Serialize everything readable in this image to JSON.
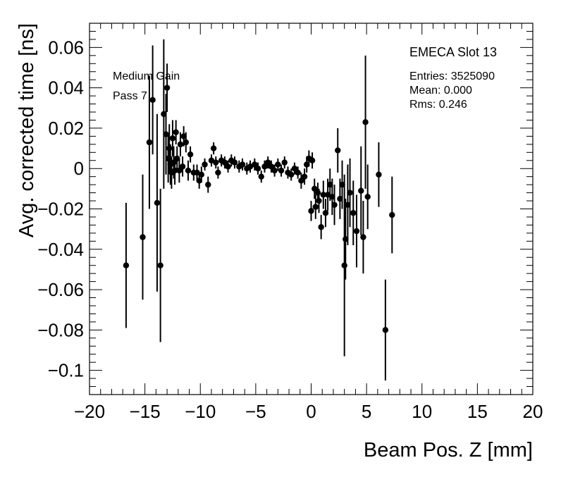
{
  "chart_data": {
    "type": "scatter",
    "xlabel": "Beam Pos. Z [mm]",
    "ylabel": "Avg. corrected time [ns]",
    "xlim": [
      -20,
      20
    ],
    "ylim": [
      -0.112,
      0.072
    ],
    "x_ticks": [
      -20,
      -15,
      -10,
      -5,
      0,
      5,
      10,
      15,
      20
    ],
    "x_tick_labels": [
      "−20",
      "−15",
      "−10",
      "−5",
      "0",
      "5",
      "10",
      "15",
      "20"
    ],
    "y_ticks": [
      -0.1,
      -0.08,
      -0.06,
      -0.04,
      -0.02,
      0,
      0.02,
      0.04,
      0.06
    ],
    "y_tick_labels": [
      "−0.1",
      "−0.08",
      "−0.06",
      "−0.04",
      "−0.02",
      "0",
      "0.02",
      "0.04",
      "0.06"
    ],
    "grid": false,
    "annotations": {
      "gain": "Medium Gain",
      "pass": "Pass 7",
      "title": "EMECA Slot 13",
      "entries": "Entries: 3525090",
      "mean": "Mean: 0.000",
      "rms": "Rms: 0.246"
    },
    "points": [
      {
        "x": -16.7,
        "y": -0.048,
        "err": 0.031
      },
      {
        "x": -15.2,
        "y": -0.034,
        "err": 0.031
      },
      {
        "x": -14.6,
        "y": 0.013,
        "err": 0.033
      },
      {
        "x": -14.3,
        "y": 0.034,
        "err": 0.027
      },
      {
        "x": -13.9,
        "y": -0.017,
        "err": 0.044
      },
      {
        "x": -13.6,
        "y": -0.048,
        "err": 0.038
      },
      {
        "x": -13.3,
        "y": 0.027,
        "err": 0.037
      },
      {
        "x": -13.1,
        "y": 0.017,
        "err": 0.02
      },
      {
        "x": -13.0,
        "y": 0.04,
        "err": 0.012
      },
      {
        "x": -12.9,
        "y": 0.005,
        "err": 0.012
      },
      {
        "x": -12.8,
        "y": 0.01,
        "err": 0.012
      },
      {
        "x": -12.7,
        "y": 0.002,
        "err": 0.01
      },
      {
        "x": -12.6,
        "y": -0.002,
        "err": 0.008
      },
      {
        "x": -12.5,
        "y": 0.015,
        "err": 0.009
      },
      {
        "x": -12.4,
        "y": 0.003,
        "err": 0.008
      },
      {
        "x": -12.3,
        "y": -0.001,
        "err": 0.007
      },
      {
        "x": -12.2,
        "y": 0.018,
        "err": 0.006
      },
      {
        "x": -12.1,
        "y": 0.005,
        "err": 0.006
      },
      {
        "x": -11.9,
        "y": -0.001,
        "err": 0.006
      },
      {
        "x": -11.8,
        "y": 0.012,
        "err": 0.006
      },
      {
        "x": -11.6,
        "y": 0.001,
        "err": 0.005
      },
      {
        "x": -11.5,
        "y": 0.016,
        "err": 0.005
      },
      {
        "x": -11.3,
        "y": 0.013,
        "err": 0.005
      },
      {
        "x": -11.1,
        "y": -0.001,
        "err": 0.005
      },
      {
        "x": -10.9,
        "y": 0.007,
        "err": 0.004
      },
      {
        "x": -10.6,
        "y": -0.002,
        "err": 0.004
      },
      {
        "x": -10.3,
        "y": -0.002,
        "err": 0.004
      },
      {
        "x": -10.1,
        "y": -0.006,
        "err": 0.004
      },
      {
        "x": -9.9,
        "y": -0.003,
        "err": 0.004
      },
      {
        "x": -9.6,
        "y": 0.002,
        "err": 0.003
      },
      {
        "x": -9.3,
        "y": -0.008,
        "err": 0.004
      },
      {
        "x": -9.0,
        "y": 0.004,
        "err": 0.003
      },
      {
        "x": -8.8,
        "y": 0.01,
        "err": 0.003
      },
      {
        "x": -8.6,
        "y": 0.003,
        "err": 0.003
      },
      {
        "x": -8.4,
        "y": -0.002,
        "err": 0.003
      },
      {
        "x": -8.1,
        "y": 0.004,
        "err": 0.003
      },
      {
        "x": -7.8,
        "y": 0.003,
        "err": 0.003
      },
      {
        "x": -7.5,
        "y": 0.001,
        "err": 0.003
      },
      {
        "x": -7.2,
        "y": 0.004,
        "err": 0.003
      },
      {
        "x": -6.9,
        "y": 0.003,
        "err": 0.003
      },
      {
        "x": -6.5,
        "y": 0.001,
        "err": 0.003
      },
      {
        "x": -6.2,
        "y": 0.002,
        "err": 0.003
      },
      {
        "x": -5.8,
        "y": 0.0,
        "err": 0.003
      },
      {
        "x": -5.5,
        "y": 0.001,
        "err": 0.003
      },
      {
        "x": -5.1,
        "y": 0.002,
        "err": 0.003
      },
      {
        "x": -4.8,
        "y": 0.0,
        "err": 0.003
      },
      {
        "x": -4.5,
        "y": -0.004,
        "err": 0.003
      },
      {
        "x": -4.2,
        "y": 0.001,
        "err": 0.003
      },
      {
        "x": -3.9,
        "y": 0.003,
        "err": 0.003
      },
      {
        "x": -3.6,
        "y": 0.001,
        "err": 0.003
      },
      {
        "x": -3.3,
        "y": -0.001,
        "err": 0.003
      },
      {
        "x": -3.0,
        "y": 0.002,
        "err": 0.003
      },
      {
        "x": -2.7,
        "y": -0.001,
        "err": 0.003
      },
      {
        "x": -2.4,
        "y": 0.003,
        "err": 0.003
      },
      {
        "x": -2.1,
        "y": -0.002,
        "err": 0.003
      },
      {
        "x": -1.8,
        "y": -0.003,
        "err": 0.003
      },
      {
        "x": -1.5,
        "y": 0.0,
        "err": 0.003
      },
      {
        "x": -1.2,
        "y": -0.002,
        "err": 0.003
      },
      {
        "x": -0.9,
        "y": -0.006,
        "err": 0.004
      },
      {
        "x": -0.6,
        "y": -0.004,
        "err": 0.004
      },
      {
        "x": -0.4,
        "y": 0.002,
        "err": 0.004
      },
      {
        "x": -0.2,
        "y": 0.005,
        "err": 0.004
      },
      {
        "x": 0.0,
        "y": -0.021,
        "err": 0.005
      },
      {
        "x": 0.1,
        "y": 0.004,
        "err": 0.004
      },
      {
        "x": 0.3,
        "y": -0.01,
        "err": 0.005
      },
      {
        "x": 0.4,
        "y": -0.019,
        "err": 0.006
      },
      {
        "x": 0.6,
        "y": -0.012,
        "err": 0.005
      },
      {
        "x": 0.7,
        "y": -0.016,
        "err": 0.006
      },
      {
        "x": 0.9,
        "y": -0.029,
        "err": 0.006
      },
      {
        "x": 1.1,
        "y": -0.013,
        "err": 0.007
      },
      {
        "x": 1.3,
        "y": -0.022,
        "err": 0.007
      },
      {
        "x": 1.5,
        "y": -0.013,
        "err": 0.008
      },
      {
        "x": 1.7,
        "y": -0.008,
        "err": 0.008
      },
      {
        "x": 1.9,
        "y": -0.014,
        "err": 0.009
      },
      {
        "x": 2.1,
        "y": -0.018,
        "err": 0.01
      },
      {
        "x": 2.4,
        "y": 0.009,
        "err": 0.011
      },
      {
        "x": 2.6,
        "y": -0.015,
        "err": 0.01
      },
      {
        "x": 2.8,
        "y": -0.008,
        "err": 0.012
      },
      {
        "x": 3.0,
        "y": -0.048,
        "err": 0.045
      },
      {
        "x": 3.1,
        "y": -0.035,
        "err": 0.02
      },
      {
        "x": 3.3,
        "y": -0.018,
        "err": 0.02
      },
      {
        "x": 3.5,
        "y": -0.012,
        "err": 0.017
      },
      {
        "x": 3.8,
        "y": -0.022,
        "err": 0.016
      },
      {
        "x": 4.1,
        "y": -0.031,
        "err": 0.018
      },
      {
        "x": 4.5,
        "y": -0.011,
        "err": 0.022
      },
      {
        "x": 4.7,
        "y": -0.034,
        "err": 0.018
      },
      {
        "x": 4.9,
        "y": 0.023,
        "err": 0.033
      },
      {
        "x": 5.1,
        "y": -0.014,
        "err": 0.016
      },
      {
        "x": 6.1,
        "y": -0.003,
        "err": 0.016
      },
      {
        "x": 6.7,
        "y": -0.08,
        "err": 0.025
      },
      {
        "x": 7.3,
        "y": -0.023,
        "err": 0.019
      }
    ]
  }
}
